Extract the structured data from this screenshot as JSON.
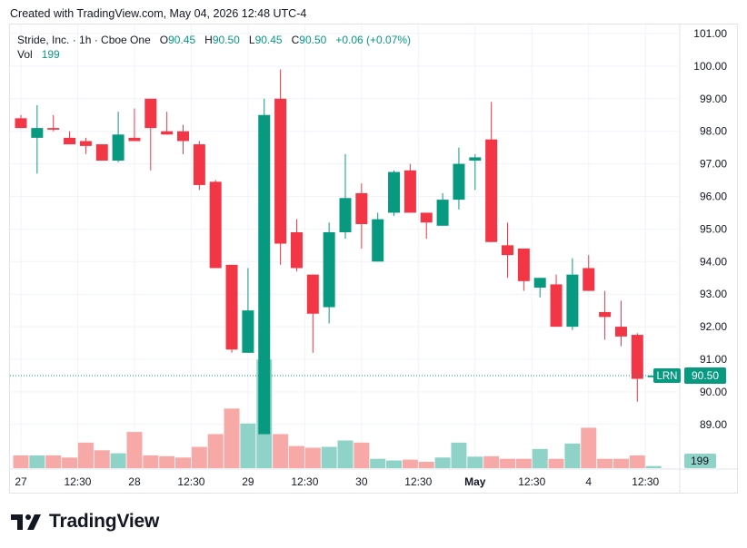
{
  "header": {
    "credit": "Created with TradingView.com, May 04, 2026 12:48 UTC-4"
  },
  "legend": {
    "symbol": "Stride, Inc. · 1h · Cboe One",
    "o_label": "O",
    "o_value": "90.45",
    "h_label": "H",
    "h_value": "90.50",
    "l_label": "L",
    "l_value": "90.45",
    "c_label": "C",
    "c_value": "90.50",
    "change": "+0.06 (+0.07%)",
    "vol_label": "Vol",
    "vol_value": "199"
  },
  "brand": {
    "name": "TradingView"
  },
  "colors": {
    "up": "#089981",
    "down": "#f23645",
    "up_volume": "#8fd3c8",
    "down_volume": "#f7a9a7",
    "grid": "#f0f3fa",
    "axis_text": "#131722",
    "price_line": "#089981"
  },
  "chart_data": {
    "type": "candlestick",
    "y_axis": {
      "ticks": [
        "89.00",
        "90.00",
        "91.00",
        "92.00",
        "93.00",
        "94.00",
        "95.00",
        "96.00",
        "97.00",
        "98.00",
        "99.00",
        "100.00",
        "101.00"
      ],
      "range": [
        88.0,
        101.6
      ],
      "partial_bottom_tick": "89.00",
      "position": "right"
    },
    "x_axis": {
      "ticks": [
        "27",
        "12:30",
        "28",
        "12:30",
        "29",
        "12:30",
        "30",
        "12:30",
        "May",
        "12:30",
        "4",
        "12:30"
      ],
      "tick_bar_index": [
        0,
        3.5,
        7,
        10.5,
        14,
        17.5,
        21,
        24.5,
        28,
        31.5,
        35,
        38.5
      ]
    },
    "last_price_label": {
      "symbol": "LRN",
      "value": "90.50"
    },
    "last_volume_label": "199",
    "candles": [
      {
        "o": 98.4,
        "h": 98.5,
        "l": 98.1,
        "c": 98.1,
        "v": 30
      },
      {
        "o": 97.8,
        "h": 98.8,
        "l": 96.7,
        "c": 98.1,
        "v": 30
      },
      {
        "o": 98.1,
        "h": 98.5,
        "l": 98.0,
        "c": 98.05,
        "v": 30
      },
      {
        "o": 97.8,
        "h": 98.0,
        "l": 97.6,
        "c": 97.6,
        "v": 25
      },
      {
        "o": 97.7,
        "h": 97.8,
        "l": 97.3,
        "c": 97.55,
        "v": 60
      },
      {
        "o": 97.6,
        "h": 97.6,
        "l": 97.1,
        "c": 97.1,
        "v": 42
      },
      {
        "o": 97.1,
        "h": 98.6,
        "l": 97.05,
        "c": 97.9,
        "v": 35
      },
      {
        "o": 97.8,
        "h": 98.7,
        "l": 97.7,
        "c": 97.7,
        "v": 85
      },
      {
        "o": 99.0,
        "h": 99.0,
        "l": 96.8,
        "c": 98.1,
        "v": 30
      },
      {
        "o": 98.0,
        "h": 98.6,
        "l": 97.9,
        "c": 97.9,
        "v": 28
      },
      {
        "o": 98.0,
        "h": 98.2,
        "l": 97.3,
        "c": 97.7,
        "v": 25
      },
      {
        "o": 97.6,
        "h": 97.7,
        "l": 96.2,
        "c": 96.35,
        "v": 50
      },
      {
        "o": 96.45,
        "h": 96.5,
        "l": 93.8,
        "c": 93.8,
        "v": 80
      },
      {
        "o": 93.9,
        "h": 93.9,
        "l": 91.2,
        "c": 91.3,
        "v": 140
      },
      {
        "o": 91.2,
        "h": 93.8,
        "l": 91.2,
        "c": 92.5,
        "v": 105
      },
      {
        "o": 88.7,
        "h": 99.0,
        "l": 88.7,
        "c": 98.5,
        "v": 255
      },
      {
        "o": 99.0,
        "h": 99.9,
        "l": 93.9,
        "c": 94.55,
        "v": 80
      },
      {
        "o": 94.9,
        "h": 95.3,
        "l": 93.7,
        "c": 93.8,
        "v": 52
      },
      {
        "o": 93.6,
        "h": 93.6,
        "l": 91.2,
        "c": 92.4,
        "v": 48
      },
      {
        "o": 92.6,
        "h": 95.2,
        "l": 92.1,
        "c": 94.9,
        "v": 50
      },
      {
        "o": 94.9,
        "h": 97.3,
        "l": 94.7,
        "c": 95.95,
        "v": 65
      },
      {
        "o": 96.1,
        "h": 96.4,
        "l": 94.4,
        "c": 95.15,
        "v": 60
      },
      {
        "o": 94.0,
        "h": 95.5,
        "l": 94.0,
        "c": 95.3,
        "v": 22
      },
      {
        "o": 95.5,
        "h": 96.8,
        "l": 95.4,
        "c": 96.75,
        "v": 18
      },
      {
        "o": 96.8,
        "h": 97.0,
        "l": 95.5,
        "c": 95.5,
        "v": 20
      },
      {
        "o": 95.5,
        "h": 95.5,
        "l": 94.7,
        "c": 95.2,
        "v": 15
      },
      {
        "o": 95.1,
        "h": 96.1,
        "l": 95.1,
        "c": 95.9,
        "v": 25
      },
      {
        "o": 95.9,
        "h": 97.5,
        "l": 95.6,
        "c": 97.0,
        "v": 60
      },
      {
        "o": 97.1,
        "h": 97.3,
        "l": 96.2,
        "c": 97.2,
        "v": 27
      },
      {
        "o": 97.75,
        "h": 98.9,
        "l": 94.6,
        "c": 94.6,
        "v": 28
      },
      {
        "o": 94.5,
        "h": 95.2,
        "l": 93.5,
        "c": 94.2,
        "v": 22
      },
      {
        "o": 94.4,
        "h": 94.4,
        "l": 93.1,
        "c": 93.4,
        "v": 22
      },
      {
        "o": 93.2,
        "h": 93.5,
        "l": 92.9,
        "c": 93.5,
        "v": 45
      },
      {
        "o": 93.3,
        "h": 93.6,
        "l": 92.0,
        "c": 92.0,
        "v": 22
      },
      {
        "o": 92.0,
        "h": 94.1,
        "l": 91.9,
        "c": 93.6,
        "v": 58
      },
      {
        "o": 93.8,
        "h": 94.2,
        "l": 93.1,
        "c": 93.1,
        "v": 95
      },
      {
        "o": 92.45,
        "h": 93.1,
        "l": 91.6,
        "c": 92.3,
        "v": 22
      },
      {
        "o": 92.0,
        "h": 92.8,
        "l": 91.4,
        "c": 91.7,
        "v": 22
      },
      {
        "o": 91.75,
        "h": 91.8,
        "l": 89.7,
        "c": 90.4,
        "v": 30
      },
      {
        "o": 90.45,
        "h": 90.5,
        "l": 90.45,
        "c": 90.5,
        "v": 5
      }
    ]
  }
}
